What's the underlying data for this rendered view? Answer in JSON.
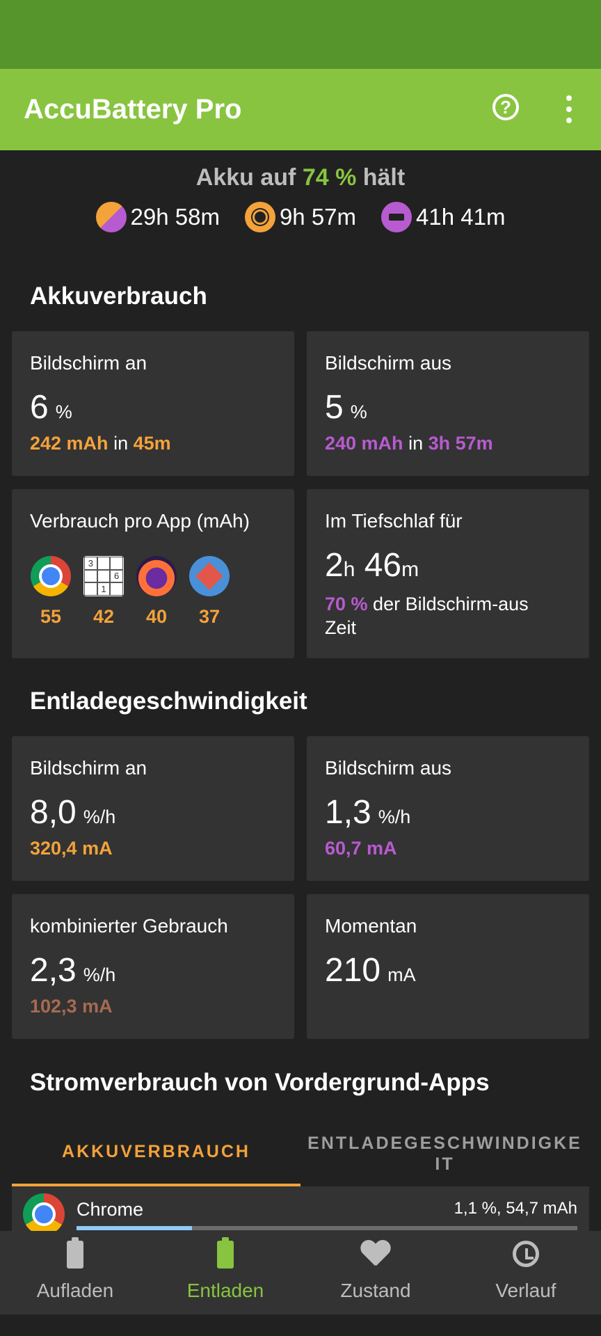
{
  "app": {
    "title": "AccuBattery Pro"
  },
  "summary": {
    "prefix": "Akku auf ",
    "percent": "74 %",
    "suffix": " hält",
    "combined_time": "29h 58m",
    "screen_on_time": "9h 57m",
    "screen_off_time": "41h 41m"
  },
  "usage": {
    "title": "Akkuverbrauch",
    "screen_on": {
      "label": "Bildschirm an",
      "value": "6",
      "unit": "%",
      "mah": "242 mAh",
      "in": " in ",
      "duration": "45m"
    },
    "screen_off": {
      "label": "Bildschirm aus",
      "value": "5",
      "unit": "%",
      "mah": "240 mAh",
      "in": " in ",
      "duration": "3h 57m"
    },
    "per_app": {
      "label": "Verbrauch pro App (mAh)",
      "apps": [
        {
          "name": "chrome",
          "value": "55"
        },
        {
          "name": "sudoku",
          "value": "42"
        },
        {
          "name": "firefox",
          "value": "40"
        },
        {
          "name": "settings",
          "value": "37"
        }
      ]
    },
    "deep_sleep": {
      "label": "Im Tiefschlaf für",
      "hours": "2",
      "h": "h",
      "minutes": "46",
      "m": "m",
      "percent": "70 %",
      "text": " der Bildschirm-aus Zeit"
    }
  },
  "discharge": {
    "title": "Entladegeschwindigkeit",
    "screen_on": {
      "label": "Bildschirm an",
      "value": "8,0",
      "unit": "%/h",
      "current": "320,4 mA"
    },
    "screen_off": {
      "label": "Bildschirm aus",
      "value": "1,3",
      "unit": "%/h",
      "current": "60,7 mA"
    },
    "combined": {
      "label": "kombinierter Gebrauch",
      "value": "2,3",
      "unit": "%/h",
      "current": "102,3 mA"
    },
    "momentary": {
      "label": "Momentan",
      "value": "210",
      "unit": "mA"
    }
  },
  "foreground": {
    "title": "Stromverbrauch von Vordergrund-Apps",
    "tabs": [
      "AKKUVERBRAUCH",
      "ENTLADEGESCHWINDIGKEIT"
    ],
    "active_tab": 0,
    "rows": [
      {
        "name": "Chrome",
        "value": "1,1 %, 54,7 mAh",
        "bar_fraction": 0.23
      }
    ]
  },
  "nav": {
    "items": [
      "Aufladen",
      "Entladen",
      "Zustand",
      "Verlauf"
    ],
    "active": 1
  },
  "colors": {
    "accent_green": "#88c440",
    "status_green": "#56952b",
    "orange": "#f4a23a",
    "purple": "#b75bd0",
    "brown": "#a86a50",
    "background": "#212121",
    "card": "#333333"
  },
  "icons": [
    "help-icon",
    "more-vert-icon",
    "battery-charging-icon",
    "battery-icon",
    "heart-icon",
    "history-icon"
  ]
}
